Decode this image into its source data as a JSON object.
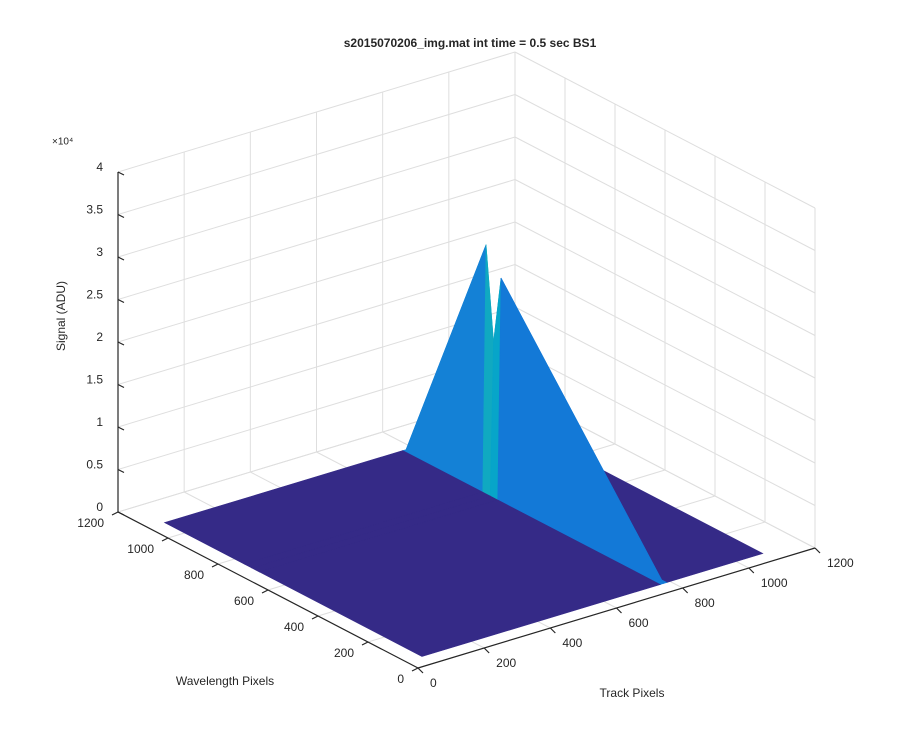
{
  "chart_data": {
    "type": "surface",
    "title": "s2015070206_img.mat int time = 0.5 sec   BS1",
    "xlabel": "Track Pixels",
    "ylabel": "Wavelength Pixels",
    "zlabel": "Signal (ADU)",
    "z_exponent": "×10⁴",
    "xlim": [
      0,
      1200
    ],
    "ylim": [
      0,
      1200
    ],
    "zlim": [
      0,
      4
    ],
    "xticks": [
      0,
      200,
      400,
      600,
      800,
      1000,
      1200
    ],
    "yticks": [
      0,
      200,
      400,
      600,
      800,
      1000,
      1200
    ],
    "zticks": [
      0,
      0.5,
      1,
      1.5,
      2,
      2.5,
      3,
      3.5,
      4
    ],
    "grid": true,
    "x": [
      50,
      770,
      780,
      790,
      1080
    ],
    "y": [
      50,
      700,
      730,
      760,
      1080
    ],
    "z": [
      [
        0,
        0,
        0,
        0,
        0
      ],
      [
        0,
        0,
        2.6,
        0,
        0
      ],
      [
        0,
        0,
        1.8,
        0,
        0
      ],
      [
        0,
        0,
        2.9,
        0,
        0
      ],
      [
        0,
        0,
        0,
        0,
        0
      ]
    ]
  }
}
